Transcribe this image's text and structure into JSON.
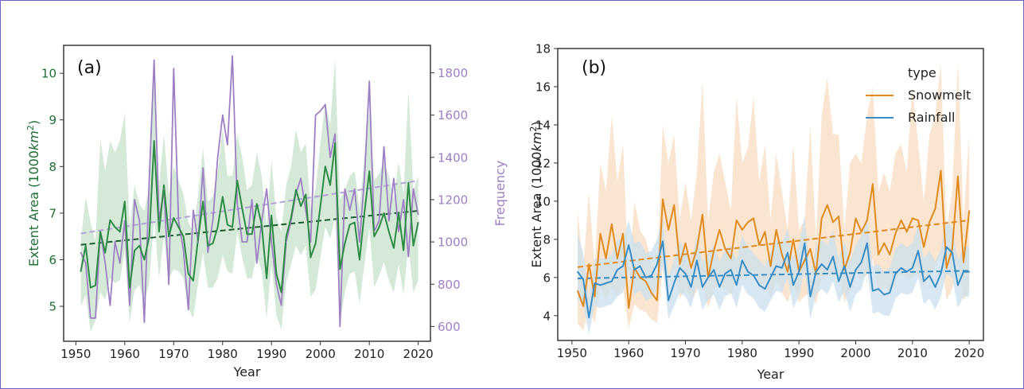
{
  "figure": {
    "frame_color": "#6a63c8"
  },
  "chart_data": [
    {
      "type": "line",
      "panel_label": "(a)",
      "xlabel": "Year",
      "ylabel": "Extent Area (1000km²)",
      "ylabel_text": "Extent Area (1000",
      "ylabel_unit": "km",
      "ylabel_exp": "2",
      "ylabel_close": ")",
      "y2label": "Frequency",
      "xlim": [
        1947.5,
        2022.5
      ],
      "ylim": [
        4.25,
        10.6
      ],
      "y2lim": [
        530,
        1930
      ],
      "xticks": [
        1950,
        1960,
        1970,
        1980,
        1990,
        2000,
        2010,
        2020
      ],
      "yticks": [
        5,
        6,
        7,
        8,
        9,
        10
      ],
      "y2ticks": [
        600,
        800,
        1000,
        1200,
        1400,
        1600,
        1800
      ],
      "grid": false,
      "x": [
        1951,
        1952,
        1953,
        1954,
        1955,
        1956,
        1957,
        1958,
        1959,
        1960,
        1961,
        1962,
        1963,
        1964,
        1965,
        1966,
        1967,
        1968,
        1969,
        1970,
        1971,
        1972,
        1973,
        1974,
        1975,
        1976,
        1977,
        1978,
        1979,
        1980,
        1981,
        1982,
        1983,
        1984,
        1985,
        1986,
        1987,
        1988,
        1989,
        1990,
        1991,
        1992,
        1993,
        1994,
        1995,
        1996,
        1997,
        1998,
        1999,
        2000,
        2001,
        2002,
        2003,
        2004,
        2005,
        2006,
        2007,
        2008,
        2009,
        2010,
        2011,
        2012,
        2013,
        2014,
        2015,
        2016,
        2017,
        2018,
        2019,
        2020
      ],
      "series": [
        {
          "name": "Extent Area",
          "axis": "left",
          "color": "#2e8b45",
          "band_color": "#c7e2cc",
          "values": [
            5.75,
            6.3,
            5.4,
            5.45,
            6.6,
            6.15,
            6.85,
            6.7,
            6.6,
            7.25,
            5.4,
            6.2,
            6.3,
            6.0,
            6.5,
            8.55,
            6.6,
            7.6,
            6.5,
            6.9,
            6.7,
            6.5,
            5.7,
            5.55,
            6.45,
            7.25,
            6.3,
            6.35,
            6.7,
            7.35,
            6.75,
            6.7,
            7.7,
            7.1,
            6.55,
            6.55,
            7.2,
            6.75,
            5.6,
            6.95,
            5.7,
            5.3,
            6.5,
            6.9,
            7.5,
            7.15,
            7.4,
            6.05,
            6.35,
            7.15,
            8.0,
            7.6,
            8.5,
            5.8,
            6.35,
            6.75,
            6.8,
            6.0,
            7.0,
            7.9,
            6.5,
            6.7,
            7.0,
            6.6,
            6.25,
            7.0,
            6.2,
            7.65,
            6.3,
            6.8
          ],
          "upper": [
            6.4,
            7.35,
            6.8,
            6.4,
            8.6,
            7.9,
            8.55,
            8.3,
            8.55,
            9.15,
            6.7,
            7.6,
            7.2,
            7.05,
            7.55,
            10.05,
            7.6,
            8.7,
            7.4,
            8.0,
            7.7,
            7.4,
            6.8,
            6.6,
            7.4,
            8.4,
            7.25,
            7.35,
            7.9,
            8.8,
            7.8,
            7.8,
            8.7,
            8.2,
            7.5,
            7.6,
            8.3,
            7.8,
            6.7,
            8.15,
            6.9,
            6.6,
            7.6,
            8.0,
            8.8,
            8.3,
            8.5,
            7.1,
            7.5,
            8.5,
            9.4,
            8.9,
            10.3,
            7.3,
            7.5,
            7.8,
            7.9,
            7.1,
            8.2,
            9.2,
            7.7,
            7.85,
            8.1,
            7.8,
            7.3,
            8.1,
            7.4,
            9.65,
            7.5,
            7.8
          ],
          "lower": [
            5.0,
            5.25,
            4.45,
            4.7,
            5.3,
            5.15,
            5.6,
            5.5,
            5.55,
            6.2,
            4.65,
            5.35,
            5.45,
            5.1,
            5.5,
            6.9,
            5.6,
            6.5,
            5.6,
            5.8,
            5.75,
            5.6,
            4.95,
            4.75,
            5.5,
            6.15,
            5.4,
            5.4,
            5.6,
            6.1,
            5.75,
            5.7,
            6.6,
            6.05,
            5.6,
            5.6,
            6.1,
            5.75,
            4.75,
            5.9,
            4.8,
            4.5,
            5.5,
            5.9,
            6.3,
            6.1,
            6.3,
            5.2,
            5.35,
            6.05,
            6.7,
            6.45,
            6.9,
            4.65,
            5.3,
            5.7,
            5.75,
            5.05,
            5.9,
            6.7,
            5.4,
            5.65,
            5.95,
            5.55,
            5.3,
            5.9,
            5.25,
            6.3,
            5.3,
            5.55
          ],
          "trend": [
            6.32,
            7.05
          ]
        },
        {
          "name": "Frequency",
          "axis": "right",
          "color": "#9e7fc3",
          "values": [
            950,
            900,
            640,
            640,
            1050,
            900,
            700,
            1000,
            900,
            1100,
            700,
            1200,
            1100,
            620,
            1300,
            1860,
            1100,
            1250,
            800,
            1820,
            1100,
            960,
            680,
            1150,
            1000,
            1350,
            950,
            1100,
            1400,
            1600,
            1460,
            1880,
            1180,
            1000,
            1000,
            1200,
            900,
            1100,
            1250,
            1000,
            800,
            700,
            1000,
            1100,
            1230,
            1300,
            1150,
            1000,
            1600,
            1620,
            1650,
            1400,
            1510,
            600,
            1250,
            1150,
            1250,
            1000,
            1300,
            1760,
            1050,
            1100,
            1450,
            1100,
            1300,
            1050,
            1200,
            930,
            1250,
            1130
          ],
          "trend": [
            1040,
            1290
          ]
        }
      ]
    },
    {
      "type": "line",
      "panel_label": "(b)",
      "xlabel": "Year",
      "ylabel": "Extent Area (1000km²)",
      "ylabel_text": "Extent Area (1000",
      "ylabel_unit": "km",
      "ylabel_exp": "2",
      "ylabel_close": ")",
      "xlim": [
        1947.5,
        2022.5
      ],
      "ylim": [
        2.7,
        18.0
      ],
      "xticks": [
        1950,
        1960,
        1970,
        1980,
        1990,
        2000,
        2010,
        2020
      ],
      "yticks": [
        4,
        6,
        8,
        10,
        12,
        14,
        16,
        18
      ],
      "grid": false,
      "legend": {
        "title": "type",
        "position": "top-right"
      },
      "x": [
        1951,
        1952,
        1953,
        1954,
        1955,
        1956,
        1957,
        1958,
        1959,
        1960,
        1961,
        1962,
        1963,
        1964,
        1965,
        1966,
        1967,
        1968,
        1969,
        1970,
        1971,
        1972,
        1973,
        1974,
        1975,
        1976,
        1977,
        1978,
        1979,
        1980,
        1981,
        1982,
        1983,
        1984,
        1985,
        1986,
        1987,
        1988,
        1989,
        1990,
        1991,
        1992,
        1993,
        1994,
        1995,
        1996,
        1997,
        1998,
        1999,
        2000,
        2001,
        2002,
        2003,
        2004,
        2005,
        2006,
        2007,
        2008,
        2009,
        2010,
        2011,
        2012,
        2013,
        2014,
        2015,
        2016,
        2017,
        2018,
        2019,
        2020
      ],
      "series": [
        {
          "name": "Snowmelt",
          "color": "#e08a1e",
          "band_color": "#f8dcc0",
          "values": [
            5.3,
            4.5,
            6.7,
            5.0,
            8.3,
            7.0,
            8.8,
            7.0,
            8.3,
            4.4,
            6.5,
            6.0,
            5.8,
            5.2,
            4.8,
            10.1,
            8.5,
            9.8,
            6.7,
            7.8,
            6.5,
            7.5,
            9.3,
            6.0,
            7.4,
            8.5,
            7.5,
            7.0,
            9.0,
            8.5,
            8.9,
            9.1,
            7.7,
            8.4,
            6.6,
            8.5,
            7.2,
            6.3,
            8.0,
            6.3,
            6.9,
            7.5,
            6.2,
            9.1,
            9.8,
            8.9,
            9.2,
            6.4,
            7.3,
            9.1,
            8.4,
            9.0,
            10.9,
            7.2,
            7.8,
            7.2,
            8.3,
            9.0,
            8.4,
            9.1,
            9.0,
            7.6,
            8.9,
            9.6,
            11.6,
            6.5,
            7.5,
            11.3,
            6.8,
            9.5
          ],
          "upper": [
            9.5,
            6.5,
            10.5,
            6.5,
            12.0,
            10.5,
            14.5,
            11.0,
            13.0,
            5.8,
            10.0,
            8.5,
            8.0,
            6.8,
            6.2,
            14.0,
            12.0,
            13.5,
            9.0,
            11.0,
            9.0,
            11.5,
            16.3,
            9.0,
            11.5,
            12.5,
            11.0,
            9.5,
            15.5,
            12.0,
            12.8,
            15.5,
            11.0,
            13.0,
            9.0,
            12.5,
            10.5,
            8.5,
            13.0,
            8.5,
            9.0,
            14.0,
            8.0,
            14.5,
            16.5,
            13.5,
            13.5,
            8.5,
            12.0,
            12.5,
            12.0,
            14.5,
            16.0,
            10.5,
            11.5,
            10.5,
            12.5,
            13.0,
            11.5,
            16.0,
            13.0,
            10.0,
            13.5,
            14.5,
            17.2,
            8.5,
            10.5,
            17.3,
            9.0,
            13.5
          ],
          "lower": [
            3.6,
            3.2,
            4.5,
            3.6,
            5.5,
            4.8,
            5.5,
            5.0,
            5.5,
            3.3,
            4.6,
            4.3,
            4.2,
            3.8,
            3.6,
            6.5,
            5.7,
            6.5,
            4.9,
            5.4,
            4.8,
            5.3,
            5.8,
            4.4,
            5.3,
            5.9,
            5.4,
            5.1,
            5.9,
            6.0,
            6.3,
            6.2,
            5.4,
            5.8,
            4.9,
            5.9,
            5.2,
            4.7,
            5.6,
            4.7,
            5.0,
            5.2,
            4.6,
            6.0,
            6.2,
            6.0,
            6.3,
            4.7,
            5.3,
            6.3,
            5.9,
            6.1,
            7.0,
            5.2,
            5.6,
            5.2,
            5.9,
            6.2,
            5.9,
            6.0,
            6.2,
            5.4,
            6.1,
            6.5,
            7.3,
            4.8,
            5.4,
            6.8,
            4.8,
            5.3
          ],
          "trend": [
            6.55,
            9.0
          ]
        },
        {
          "name": "Rainfall",
          "color": "#3a8cc4",
          "band_color": "#cbe0ef",
          "values": [
            6.3,
            5.9,
            3.9,
            5.7,
            5.6,
            5.7,
            5.8,
            6.4,
            6.6,
            7.7,
            6.4,
            6.6,
            6.0,
            6.1,
            6.7,
            7.9,
            4.8,
            5.7,
            6.5,
            6.2,
            5.5,
            6.9,
            5.5,
            6.0,
            6.4,
            5.5,
            6.2,
            6.4,
            5.6,
            6.9,
            6.3,
            6.1,
            5.6,
            5.4,
            6.0,
            6.6,
            6.5,
            7.3,
            5.6,
            6.3,
            7.8,
            5.0,
            6.3,
            6.7,
            6.4,
            7.1,
            5.8,
            6.6,
            5.5,
            6.4,
            6.8,
            7.8,
            5.3,
            5.4,
            5.1,
            5.2,
            6.2,
            6.5,
            6.3,
            6.5,
            7.4,
            5.8,
            6.1,
            5.5,
            6.2,
            7.6,
            7.3,
            5.6,
            6.3,
            6.3
          ],
          "upper": [
            8.3,
            7.3,
            4.9,
            7.0,
            7.0,
            7.0,
            7.2,
            8.0,
            8.0,
            9.0,
            7.8,
            7.9,
            7.3,
            7.4,
            8.0,
            9.2,
            6.0,
            7.0,
            7.9,
            7.4,
            6.7,
            8.2,
            6.8,
            7.3,
            7.7,
            6.8,
            7.5,
            7.7,
            6.9,
            8.2,
            7.6,
            7.3,
            6.9,
            6.6,
            7.3,
            8.0,
            7.8,
            8.6,
            6.9,
            7.7,
            9.2,
            6.3,
            7.6,
            8.0,
            7.7,
            8.5,
            7.0,
            7.9,
            6.9,
            7.7,
            8.2,
            9.2,
            6.6,
            6.7,
            6.3,
            6.5,
            7.5,
            7.8,
            7.6,
            7.8,
            8.8,
            7.0,
            7.4,
            6.8,
            7.5,
            9.0,
            8.6,
            6.9,
            7.6,
            7.6
          ],
          "lower": [
            4.8,
            4.6,
            3.0,
            4.5,
            4.4,
            4.5,
            4.6,
            5.0,
            5.2,
            6.3,
            5.1,
            5.3,
            4.8,
            4.9,
            5.4,
            6.6,
            3.8,
            4.5,
            5.2,
            5.0,
            4.4,
            5.6,
            4.3,
            4.8,
            5.1,
            4.3,
            5.0,
            5.2,
            4.4,
            5.6,
            5.1,
            4.9,
            4.4,
            4.2,
            4.8,
            5.3,
            5.2,
            6.0,
            4.4,
            5.0,
            6.4,
            3.8,
            5.1,
            5.4,
            5.1,
            5.8,
            4.7,
            5.3,
            4.2,
            5.1,
            5.4,
            6.4,
            4.1,
            4.2,
            4.0,
            4.0,
            4.9,
            5.2,
            5.1,
            5.2,
            6.0,
            4.6,
            4.9,
            4.3,
            5.0,
            6.2,
            6.0,
            4.4,
            5.0,
            5.0
          ],
          "trend": [
            5.95,
            6.35
          ]
        }
      ]
    }
  ]
}
